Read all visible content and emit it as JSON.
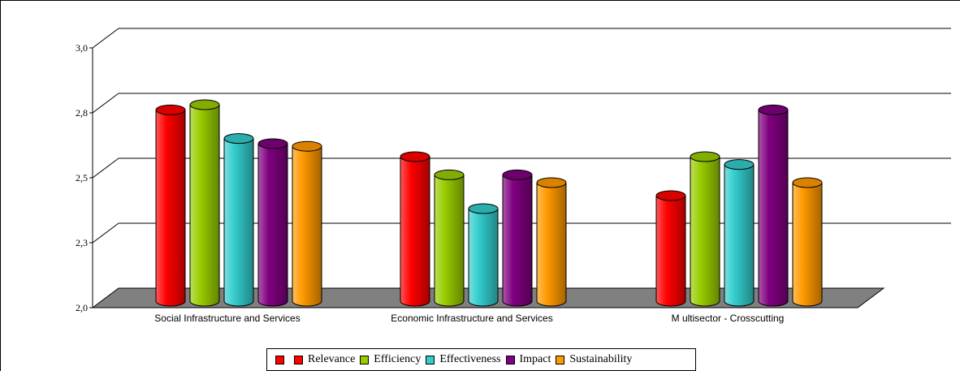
{
  "chart_data": {
    "type": "bar",
    "title": "",
    "xlabel": "",
    "ylabel": "",
    "ylim": [
      2.0,
      3.0
    ],
    "yticks": [
      "2,0",
      "2,3",
      "2,5",
      "2,8",
      "3,0"
    ],
    "ytick_values": [
      2.0,
      2.25,
      2.5,
      2.75,
      3.0
    ],
    "categories": [
      "Social Infrastructure and Services",
      "Economic Infrastructure and Services",
      "M ultisector - Crosscutting"
    ],
    "series": [
      {
        "name": "Relevance",
        "color": "#ff0000",
        "values": [
          2.73,
          2.55,
          2.4
        ]
      },
      {
        "name": "Efficiency",
        "color": "#99cc00",
        "values": [
          2.75,
          2.48,
          2.55
        ]
      },
      {
        "name": "Effectiveness",
        "color": "#33cccc",
        "values": [
          2.62,
          2.35,
          2.52
        ]
      },
      {
        "name": "Impact",
        "color": "#800080",
        "values": [
          2.6,
          2.48,
          2.73
        ]
      },
      {
        "name": "Sustainability",
        "color": "#ff9900",
        "values": [
          2.59,
          2.45,
          2.45
        ]
      }
    ],
    "legend": {
      "position": "bottom",
      "empty_first_entry": true,
      "empty_entry_color": "#ff0000"
    },
    "grid": true,
    "floor_color": "#808080"
  }
}
